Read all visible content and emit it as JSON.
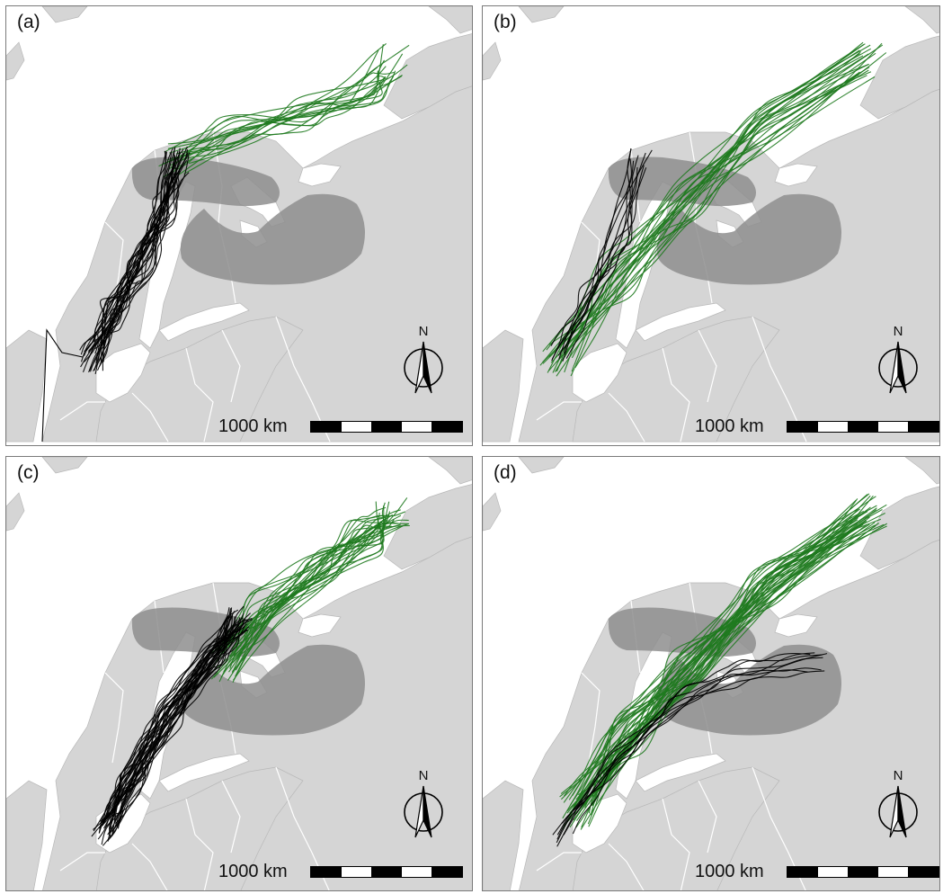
{
  "panels": [
    {
      "id": "a",
      "label": "(a)",
      "track_style": "a"
    },
    {
      "id": "b",
      "label": "(b)",
      "track_style": "b"
    },
    {
      "id": "c",
      "label": "(c)",
      "track_style": "c"
    },
    {
      "id": "d",
      "label": "(d)",
      "track_style": "d"
    }
  ],
  "scale_label": "1000 km",
  "north_label": "N",
  "colors": {
    "land": "#d5d5d5",
    "sea": "#ffffff",
    "border": "#ffffff",
    "range_area": "#8e8e8e",
    "track_green": "#1f7a1f",
    "track_black": "#000000",
    "frame": "#7a7a7a"
  },
  "icons": [
    "north-arrow-icon",
    "scale-bar"
  ]
}
